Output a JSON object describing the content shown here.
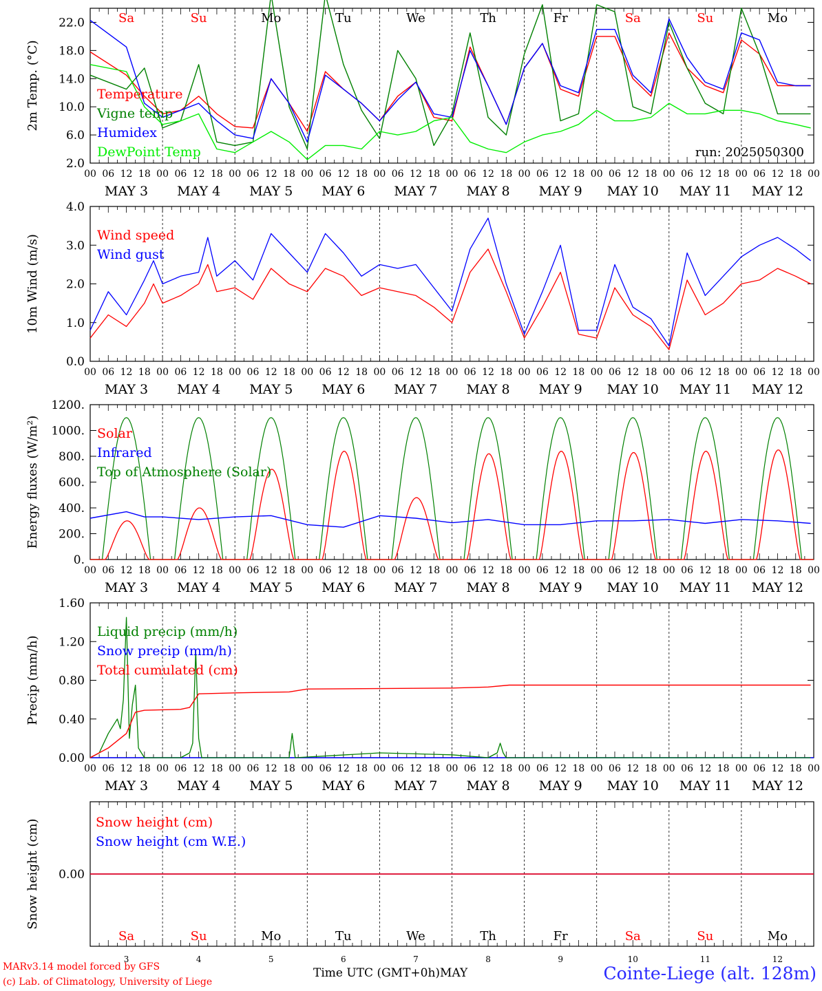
{
  "chart_data": [
    {
      "type": "line",
      "ylabel": "2m Temp. (°C)",
      "ylim": [
        2.0,
        24.0
      ],
      "yticks": [
        "2.0",
        "6.0",
        "10.0",
        "14.0",
        "18.0",
        "22.0"
      ],
      "ytick_values": [
        2,
        6,
        10,
        14,
        18,
        22
      ],
      "annotation": "run: 2025050300",
      "day_labels": [
        {
          "text": "Sa",
          "color": "#ff0000"
        },
        {
          "text": "Su",
          "color": "#ff0000"
        },
        {
          "text": "Mo",
          "color": "#000000"
        },
        {
          "text": "Tu",
          "color": "#000000"
        },
        {
          "text": "We",
          "color": "#000000"
        },
        {
          "text": "Th",
          "color": "#000000"
        },
        {
          "text": "Fr",
          "color": "#000000"
        },
        {
          "text": "Sa",
          "color": "#ff0000"
        },
        {
          "text": "Su",
          "color": "#ff0000"
        },
        {
          "text": "Mo",
          "color": "#000000"
        }
      ],
      "x_hours": [
        0,
        12,
        18,
        24,
        30,
        36,
        42,
        48,
        54,
        60,
        66,
        72,
        78,
        84,
        90,
        96,
        102,
        108,
        114,
        120,
        126,
        132,
        138,
        144,
        150,
        156,
        162,
        168,
        174,
        180,
        186,
        192,
        198,
        204,
        210,
        216,
        222,
        228,
        234,
        239
      ],
      "series": [
        {
          "name": "Temperature",
          "color": "#ff0000",
          "values": [
            17.8,
            14.5,
            11.5,
            9.0,
            9.5,
            11.5,
            9.0,
            7.2,
            7.0,
            14.0,
            10.5,
            6.5,
            15.0,
            12.5,
            10.5,
            8.0,
            11.5,
            13.5,
            8.5,
            8.0,
            18.5,
            13.0,
            7.5,
            15.5,
            19.0,
            12.5,
            11.5,
            20.0,
            20.0,
            14.0,
            11.5,
            20.5,
            15.5,
            13.0,
            12.0,
            19.5,
            17.5,
            13.0,
            13.0,
            13.0
          ]
        },
        {
          "name": "Vigne temp",
          "color": "#008000",
          "values": [
            14.5,
            12.5,
            15.5,
            7.0,
            8.0,
            16.0,
            5.0,
            4.5,
            5.0,
            26.0,
            10.0,
            4.0,
            26.0,
            16.0,
            9.5,
            5.5,
            18.0,
            14.0,
            4.5,
            9.0,
            20.5,
            8.5,
            6.0,
            17.5,
            24.5,
            8.0,
            9.0,
            24.5,
            23.5,
            10.0,
            9.0,
            22.0,
            15.5,
            10.5,
            9.0,
            24.0,
            17.5,
            9.0,
            9.0,
            9.0
          ]
        },
        {
          "name": "Humidex",
          "color": "#0000ff",
          "values": [
            22.3,
            18.5,
            10.5,
            8.5,
            9.5,
            10.5,
            8.0,
            6.0,
            5.5,
            14.0,
            10.5,
            5.0,
            14.5,
            12.5,
            10.5,
            8.0,
            11.0,
            13.5,
            9.0,
            8.5,
            18.0,
            13.0,
            7.5,
            15.5,
            19.0,
            13.0,
            12.0,
            21.0,
            21.0,
            14.5,
            12.0,
            22.5,
            17.0,
            13.5,
            12.5,
            20.5,
            19.5,
            13.5,
            13.0,
            13.0
          ]
        },
        {
          "name": "DewPoint Temp",
          "color": "#00ee00",
          "values": [
            16.0,
            15.0,
            10.0,
            7.5,
            8.0,
            9.0,
            4.0,
            3.5,
            5.0,
            6.5,
            5.0,
            2.5,
            4.5,
            4.5,
            4.0,
            6.5,
            6.0,
            6.5,
            8.0,
            8.5,
            5.0,
            4.0,
            3.5,
            5.0,
            6.0,
            6.5,
            7.5,
            9.5,
            8.0,
            8.0,
            8.5,
            10.5,
            9.0,
            9.0,
            9.5,
            9.5,
            9.0,
            8.0,
            7.5,
            7.0
          ]
        }
      ]
    },
    {
      "type": "line",
      "ylabel": "10m Wind (m/s)",
      "ylim": [
        0.0,
        4.0
      ],
      "yticks": [
        "0.0",
        "1.0",
        "2.0",
        "3.0",
        "4.0"
      ],
      "ytick_values": [
        0,
        1,
        2,
        3,
        4
      ],
      "x_hours": [
        0,
        6,
        12,
        18,
        21,
        24,
        30,
        36,
        39,
        42,
        48,
        54,
        60,
        66,
        72,
        78,
        84,
        90,
        96,
        102,
        108,
        114,
        120,
        126,
        132,
        138,
        144,
        150,
        156,
        162,
        168,
        174,
        180,
        186,
        192,
        198,
        204,
        210,
        216,
        222,
        228,
        234,
        239
      ],
      "series": [
        {
          "name": "Wind speed",
          "color": "#ff0000",
          "values": [
            0.6,
            1.2,
            0.9,
            1.5,
            2.0,
            1.5,
            1.7,
            2.0,
            2.5,
            1.8,
            1.9,
            1.6,
            2.4,
            2.0,
            1.8,
            2.4,
            2.2,
            1.7,
            1.9,
            1.8,
            1.7,
            1.4,
            1.0,
            2.3,
            2.9,
            1.8,
            0.6,
            1.4,
            2.3,
            0.7,
            0.6,
            1.9,
            1.2,
            0.9,
            0.3,
            2.1,
            1.2,
            1.5,
            2.0,
            2.1,
            2.4,
            2.2,
            2.0
          ]
        },
        {
          "name": "Wind gust",
          "color": "#0000ff",
          "values": [
            0.8,
            1.8,
            1.2,
            2.1,
            2.6,
            2.0,
            2.2,
            2.3,
            3.2,
            2.2,
            2.6,
            2.1,
            3.3,
            2.8,
            2.3,
            3.3,
            2.8,
            2.2,
            2.5,
            2.4,
            2.5,
            1.9,
            1.3,
            2.9,
            3.7,
            2.0,
            0.7,
            1.8,
            3.0,
            0.8,
            0.8,
            2.5,
            1.4,
            1.1,
            0.4,
            2.8,
            1.7,
            2.2,
            2.7,
            3.0,
            3.2,
            2.9,
            2.6
          ]
        }
      ]
    },
    {
      "type": "line",
      "ylabel": "Energy fluxes (W/m²)",
      "ylim": [
        0,
        1200
      ],
      "yticks": [
        "0.",
        "200.",
        "400.",
        "600.",
        "800.",
        "1000.",
        "1200."
      ],
      "ytick_values": [
        0,
        200,
        400,
        600,
        800,
        1000,
        1200
      ],
      "solar_peaks": [
        300,
        400,
        700,
        840,
        480,
        820,
        840,
        830,
        840,
        850
      ],
      "toa_peak": 1100,
      "infrared_hours": [
        0,
        12,
        18,
        24,
        36,
        48,
        60,
        72,
        84,
        96,
        108,
        120,
        132,
        144,
        156,
        168,
        180,
        192,
        204,
        216,
        228,
        239
      ],
      "infrared_values": [
        320,
        370,
        330,
        330,
        310,
        330,
        340,
        270,
        250,
        340,
        320,
        285,
        310,
        270,
        270,
        300,
        300,
        310,
        280,
        310,
        300,
        280
      ],
      "series": [
        {
          "name": "Solar",
          "color": "#ff0000"
        },
        {
          "name": "Infrared",
          "color": "#0000ff"
        },
        {
          "name": "Top of Atmosphere (Solar)",
          "color": "#008000"
        }
      ]
    },
    {
      "type": "line",
      "ylabel": "Precip (mm/h)",
      "ylim": [
        0.0,
        1.6
      ],
      "yticks": [
        "0.00",
        "0.40",
        "0.80",
        "1.20",
        "1.60"
      ],
      "ytick_values": [
        0,
        0.4,
        0.8,
        1.2,
        1.6
      ],
      "liquid_hours": [
        0,
        3,
        6,
        9,
        10,
        11,
        12,
        13,
        14,
        15,
        16,
        17,
        18,
        20,
        30,
        33,
        34,
        35,
        36,
        37,
        38,
        40,
        48,
        66,
        67,
        68,
        96,
        120,
        132,
        135,
        136,
        137,
        138,
        140,
        239
      ],
      "liquid_values": [
        0,
        0.05,
        0.25,
        0.4,
        0.3,
        0.6,
        1.45,
        0.2,
        0.55,
        0.75,
        0.1,
        0.05,
        0,
        0,
        0,
        0.05,
        0.15,
        1.1,
        0.2,
        0,
        0,
        0,
        0,
        0,
        0.25,
        0,
        0.05,
        0.03,
        0,
        0.05,
        0.15,
        0.05,
        0,
        0,
        0
      ],
      "total_hours": [
        0,
        6,
        12,
        15,
        18,
        30,
        33,
        36,
        48,
        66,
        72,
        120,
        132,
        139,
        144,
        239
      ],
      "total_values": [
        0,
        0.1,
        0.25,
        0.47,
        0.49,
        0.5,
        0.52,
        0.66,
        0.67,
        0.68,
        0.71,
        0.72,
        0.73,
        0.75,
        0.75,
        0.75
      ],
      "series": [
        {
          "name": "Liquid precip (mm/h)",
          "color": "#008000"
        },
        {
          "name": "Snow precip (mm/h)",
          "color": "#0000ff"
        },
        {
          "name": "Total cumulated (cm)",
          "color": "#ff0000"
        }
      ]
    },
    {
      "type": "line",
      "ylabel": "Snow height (cm)",
      "ytick_label": "0.00",
      "series": [
        {
          "name": "Snow height (cm)",
          "color": "#ff0000"
        },
        {
          "name": "Snow height (cm W.E.)",
          "color": "#0000ff"
        }
      ]
    }
  ],
  "date_labels": [
    "MAY  3",
    "MAY  4",
    "MAY  5",
    "MAY  6",
    "MAY  7",
    "MAY  8",
    "MAY  9",
    "MAY 10",
    "MAY 11",
    "MAY 12"
  ],
  "hour_ticks": [
    "00",
    "06",
    "12",
    "18"
  ],
  "end_tick": "00",
  "bottom_day_numbers": [
    "3",
    "4",
    "5",
    "6",
    "7",
    "8",
    "9",
    "10",
    "11",
    "12"
  ],
  "footer": {
    "model": "MARv3.14 model forced by GFS",
    "copyright": "(c) Lab. of Climatology, University of Liege",
    "time_label": "Time UTC (GMT+0h)MAY",
    "location": "Cointe-Liege (alt. 128m)"
  }
}
